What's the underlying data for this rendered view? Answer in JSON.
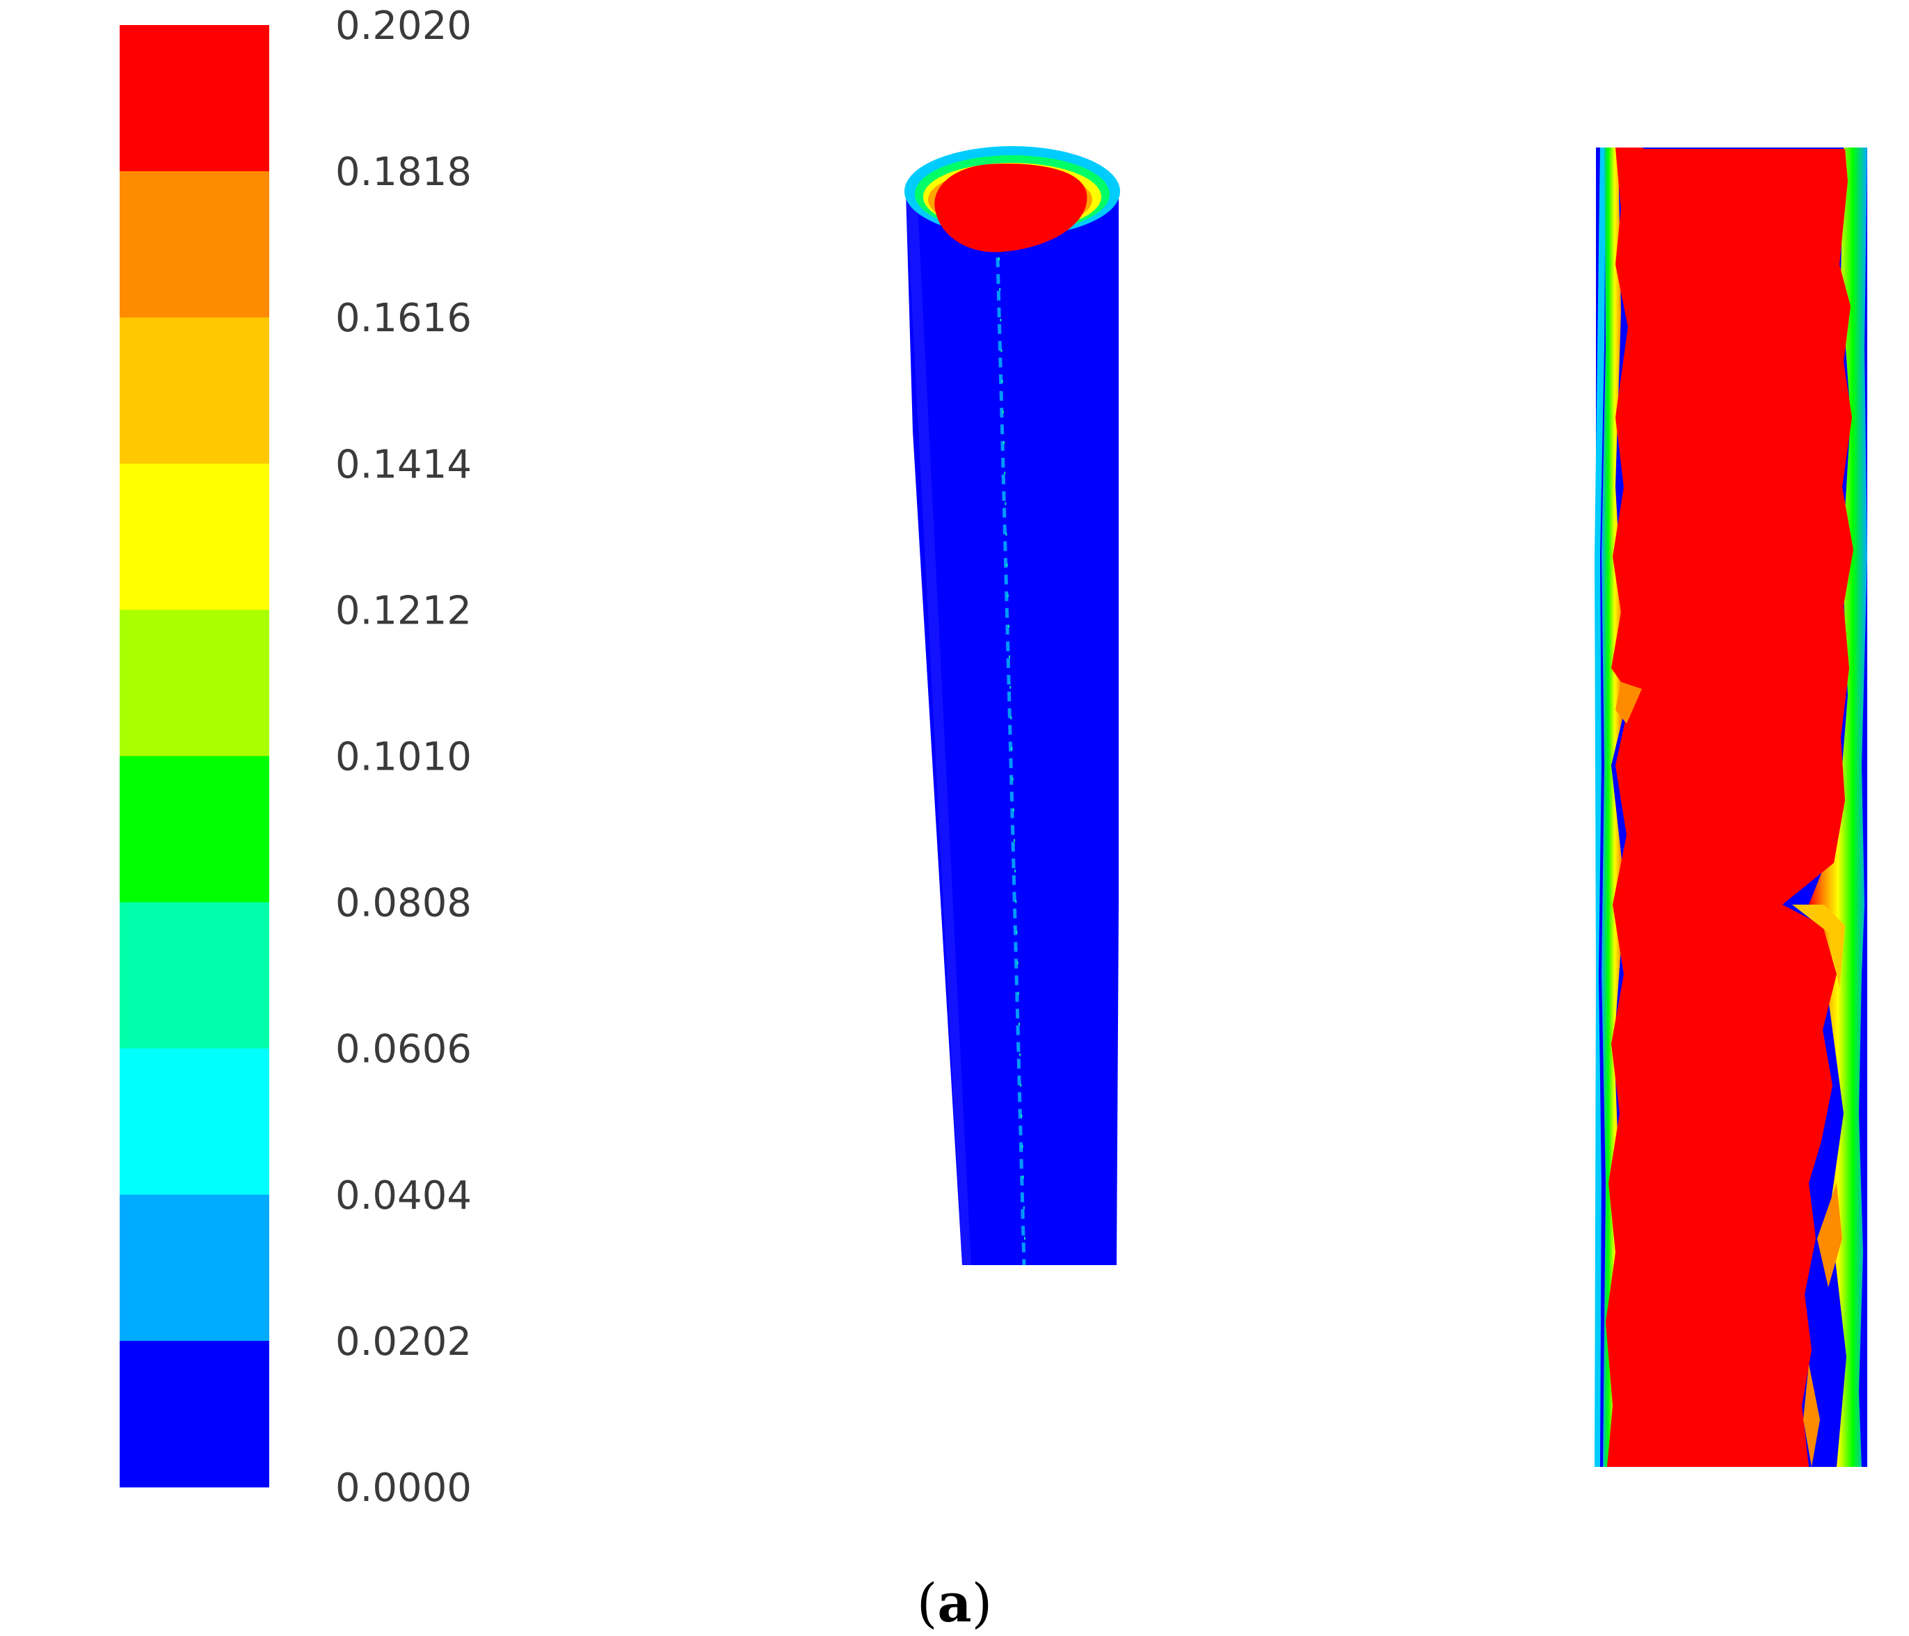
{
  "colorbar": {
    "labels": [
      "0.2020",
      "0.1818",
      "0.1616",
      "0.1414",
      "0.1212",
      "0.1010",
      "0.0808",
      "0.0606",
      "0.0404",
      "0.0202",
      "0.0000"
    ],
    "colors": [
      "#ff0000",
      "#ff8c00",
      "#ffc800",
      "#ffff00",
      "#aaff00",
      "#00ff00",
      "#00ffaa",
      "#00ffff",
      "#00aaff",
      "#0000ff"
    ]
  },
  "caption": {
    "open": "(",
    "letter": "a",
    "close": ")"
  },
  "views": {
    "cylinder_outer_color": "#0000ff",
    "cylinder_core_color": "#ff0000",
    "section_core_color": "#ff0000"
  }
}
